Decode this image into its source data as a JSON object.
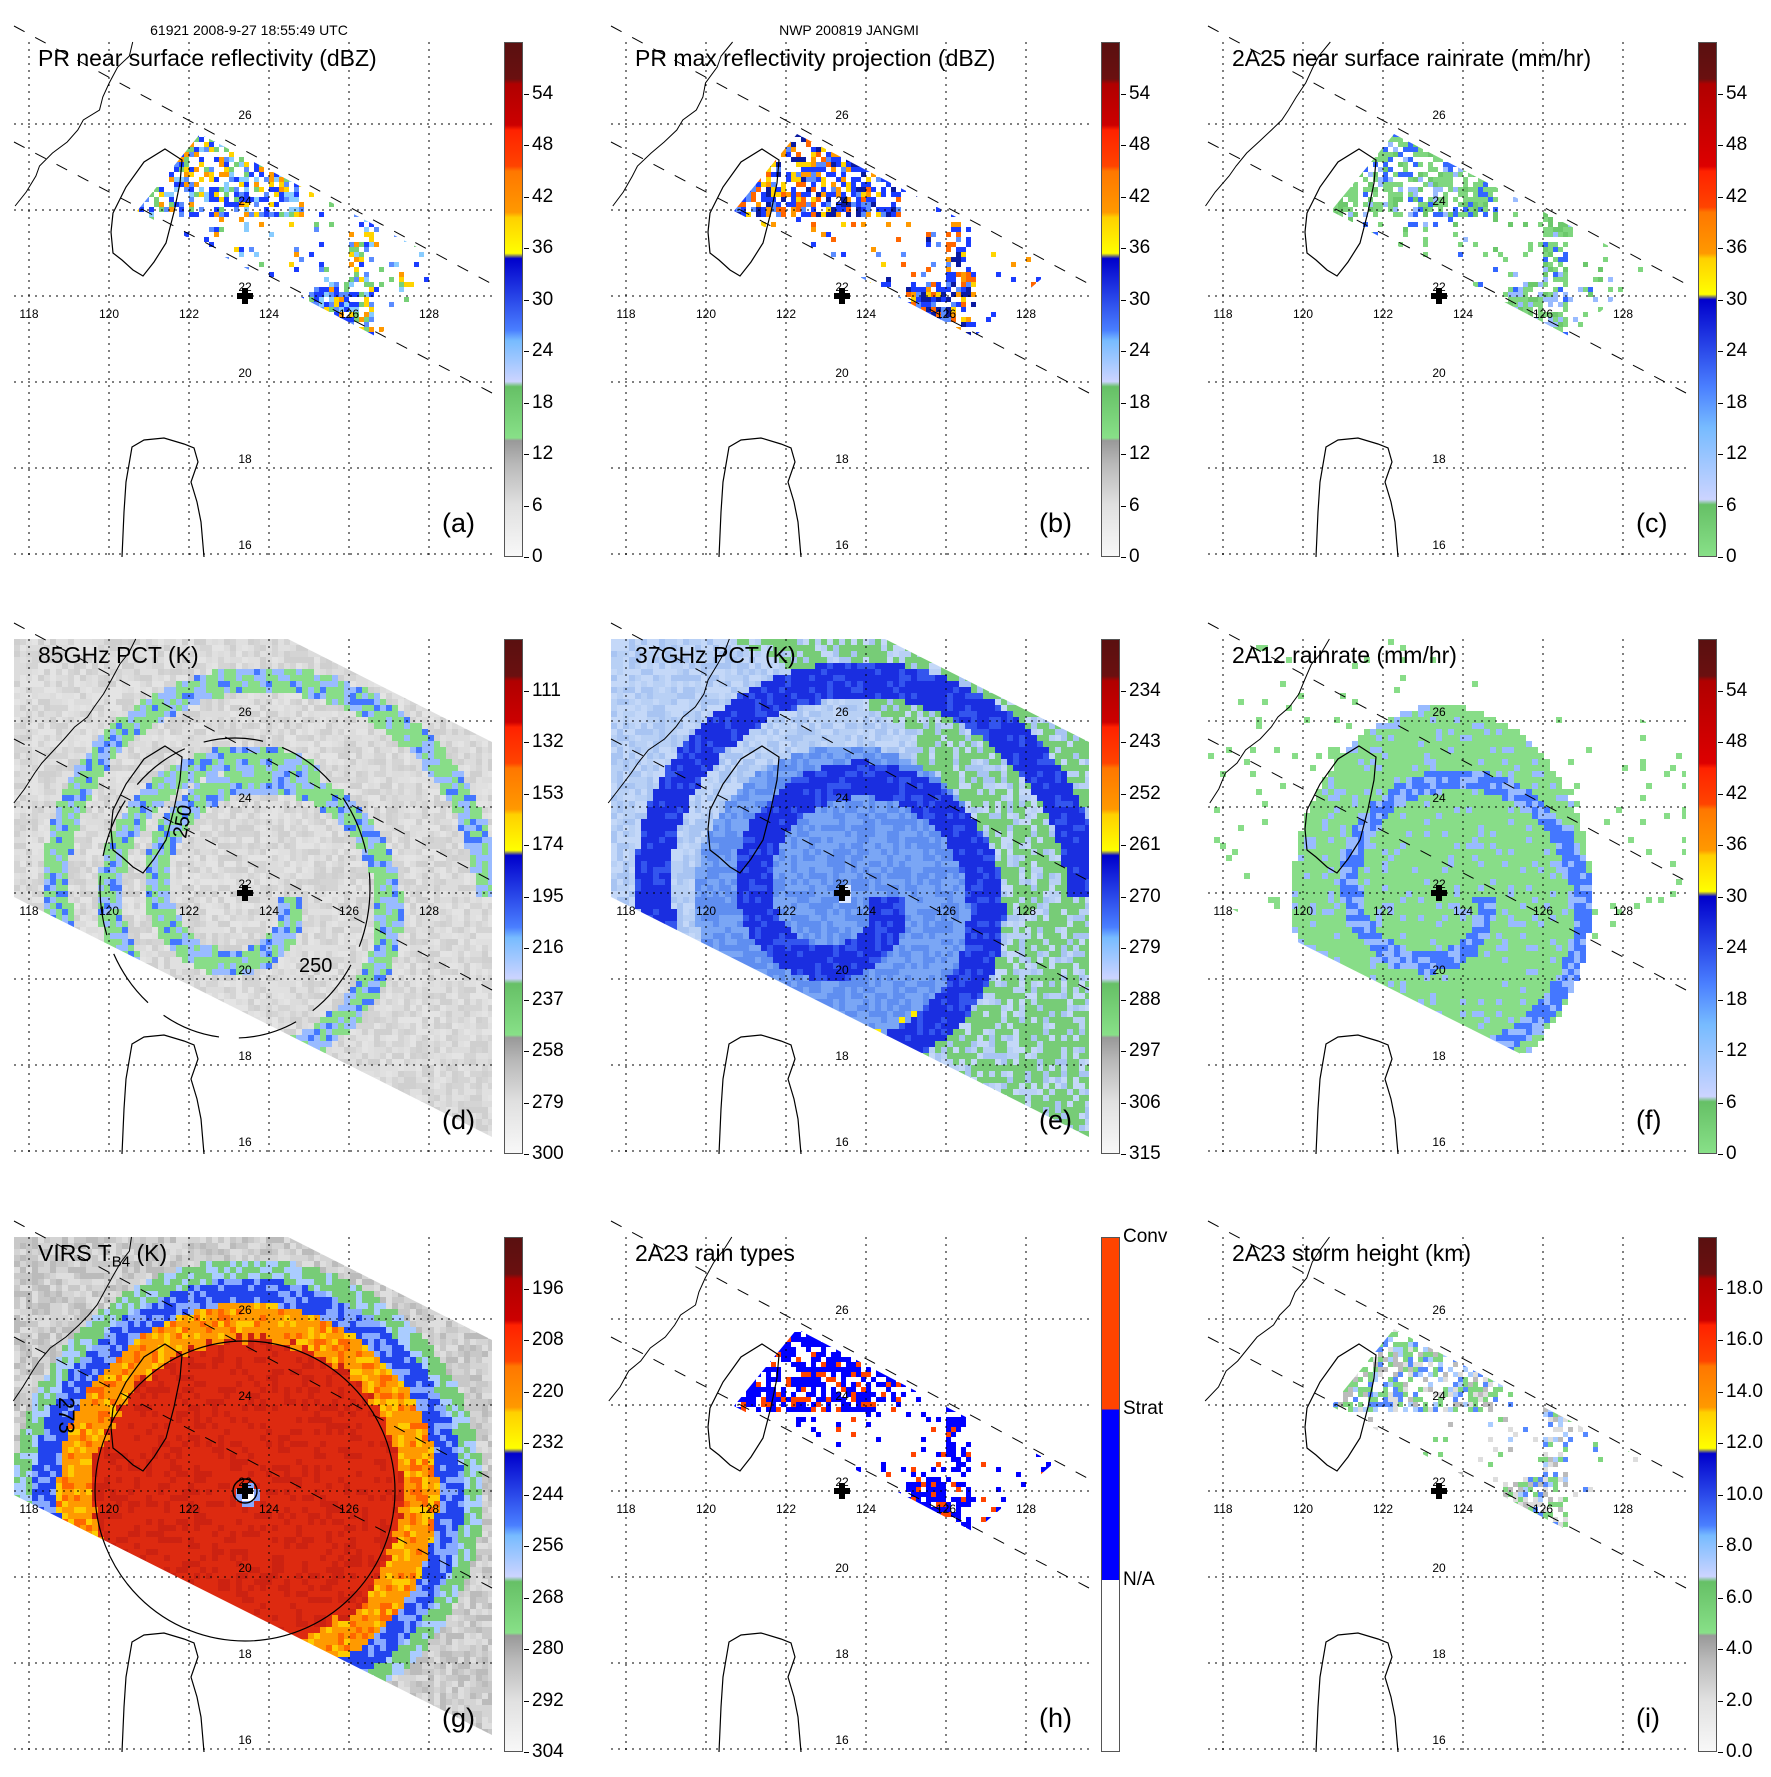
{
  "header": {
    "orbit_time": "61921 2008-9-27 18:55:49 UTC",
    "storm": "NWP 200819 JANGMI"
  },
  "map_labels": {
    "lon": [
      "118",
      "120",
      "122",
      "124",
      "126",
      "128"
    ],
    "lat": [
      "26",
      "24",
      "22",
      "20",
      "18",
      "16"
    ]
  },
  "panels": [
    {
      "letter": "(a)",
      "title": "PR near surface reflectivity (dBZ)",
      "colorbar": {
        "labels": [
          "0",
          "6",
          "12",
          "18",
          "24",
          "30",
          "36",
          "42",
          "48",
          "54"
        ]
      }
    },
    {
      "letter": "(b)",
      "title": "PR max reflectivity projection (dBZ)",
      "colorbar": {
        "labels": [
          "0",
          "6",
          "12",
          "18",
          "24",
          "30",
          "36",
          "42",
          "48",
          "54"
        ]
      }
    },
    {
      "letter": "(c)",
      "title": "2A25 near surface rainrate (mm/hr)",
      "colorbar": {
        "labels": [
          "0",
          "6",
          "12",
          "18",
          "24",
          "30",
          "36",
          "42",
          "48",
          "54"
        ]
      }
    },
    {
      "letter": "(d)",
      "title": "85GHz PCT (K)",
      "contour_labels": [
        "250",
        "250"
      ],
      "colorbar": {
        "labels": [
          "300",
          "279",
          "258",
          "237",
          "216",
          "195",
          "174",
          "153",
          "132",
          "111"
        ]
      }
    },
    {
      "letter": "(e)",
      "title": "37GHz PCT (K)",
      "colorbar": {
        "labels": [
          "315",
          "306",
          "297",
          "288",
          "279",
          "270",
          "261",
          "252",
          "243",
          "234"
        ]
      }
    },
    {
      "letter": "(f)",
      "title": "2A12 rainrate (mm/hr)",
      "colorbar": {
        "labels": [
          "0",
          "6",
          "12",
          "18",
          "24",
          "30",
          "36",
          "42",
          "48",
          "54"
        ]
      }
    },
    {
      "letter": "(g)",
      "title": "VIRS T",
      "title_sub": "B4",
      "title_suffix": " (K)",
      "contour_labels": [
        "273"
      ],
      "colorbar": {
        "labels": [
          "304",
          "292",
          "280",
          "268",
          "256",
          "244",
          "232",
          "220",
          "208",
          "196"
        ]
      }
    },
    {
      "letter": "(h)",
      "title": "2A23 rain types",
      "colorbar": {
        "categories": [
          "Conv",
          "Strat",
          "N/A"
        ]
      }
    },
    {
      "letter": "(i)",
      "title": "2A23 storm height (km)",
      "colorbar": {
        "labels": [
          "0.0",
          "2.0",
          "4.0",
          "6.0",
          "8.0",
          "10.0",
          "12.0",
          "14.0",
          "16.0",
          "18.0"
        ]
      }
    }
  ]
}
